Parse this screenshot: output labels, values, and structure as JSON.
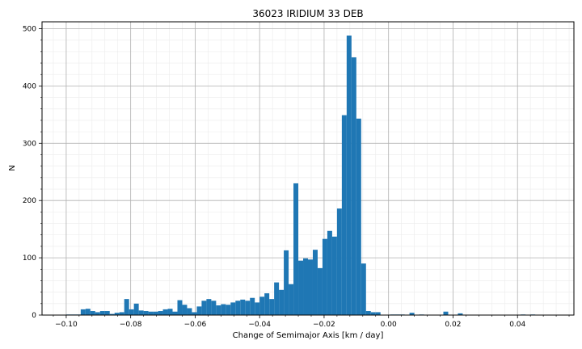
{
  "chart_data": {
    "type": "bar",
    "title": "36023 IRIDIUM 33 DEB",
    "xlabel": "Change of Semimajor Axis [km / day]",
    "ylabel": "N",
    "xlim": [
      -0.1075,
      0.0575
    ],
    "ylim": [
      0,
      512
    ],
    "xticks": [
      -0.1,
      -0.08,
      -0.06,
      -0.04,
      -0.02,
      0.0,
      0.02,
      0.04
    ],
    "xtick_labels": [
      "−0.10",
      "−0.08",
      "−0.06",
      "−0.04",
      "−0.02",
      "0.00",
      "0.02",
      "0.04"
    ],
    "yticks": [
      0,
      100,
      200,
      300,
      400,
      500
    ],
    "ytick_labels": [
      "0",
      "100",
      "200",
      "300",
      "400",
      "500"
    ],
    "grid": true,
    "minor_grid": true,
    "bar_color": "#1f77b4",
    "bin_start": -0.1,
    "bin_width": 0.0015,
    "values": [
      1,
      1,
      1,
      10,
      11,
      7,
      5,
      7,
      7,
      2,
      4,
      5,
      28,
      10,
      20,
      8,
      7,
      6,
      6,
      7,
      10,
      11,
      6,
      26,
      18,
      12,
      5,
      15,
      25,
      28,
      25,
      17,
      19,
      18,
      22,
      25,
      27,
      25,
      30,
      22,
      32,
      38,
      28,
      57,
      44,
      113,
      54,
      230,
      95,
      99,
      97,
      114,
      82,
      133,
      147,
      137,
      186,
      349,
      488,
      450,
      343,
      90,
      7,
      5,
      5,
      0,
      0,
      1,
      1,
      1,
      0,
      4,
      0,
      1,
      0,
      0,
      0,
      0,
      6,
      0,
      0,
      3,
      0,
      0,
      0,
      0,
      0,
      0,
      0,
      0,
      0,
      0,
      0,
      0,
      1,
      0,
      1,
      0,
      0
    ]
  }
}
